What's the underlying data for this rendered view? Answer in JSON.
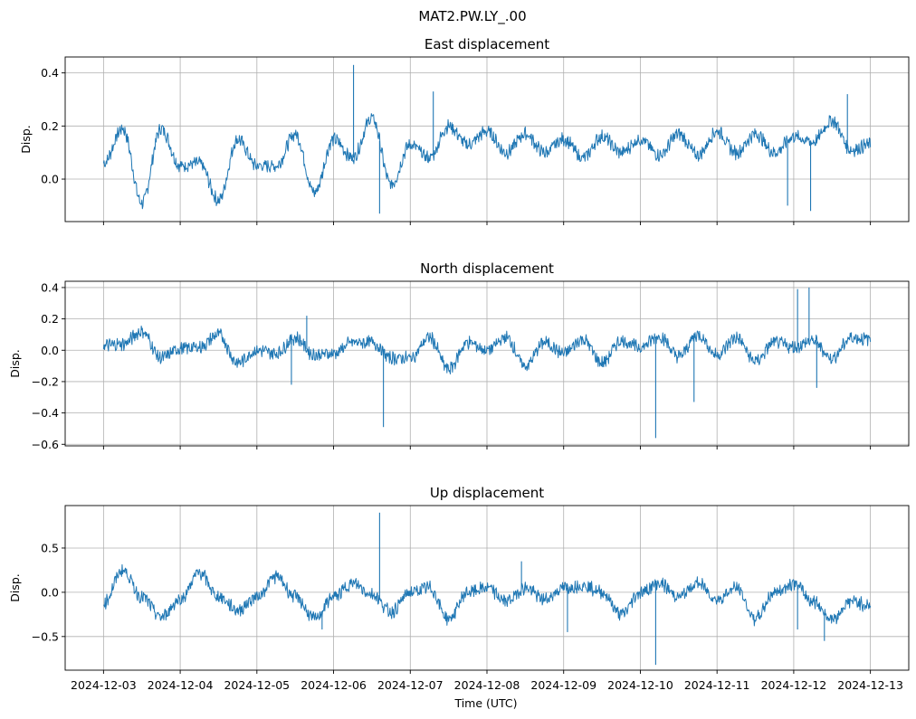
{
  "figure": {
    "suptitle": "MAT2.PW.LY_.00",
    "xlabel": "Time (UTC)"
  },
  "chart_data": [
    {
      "type": "line",
      "title": "East displacement",
      "ylabel": "Disp.",
      "xlim": [
        -0.5,
        10.5
      ],
      "ylim": [
        -0.16,
        0.46
      ],
      "yticks": [
        0.0,
        0.2,
        0.4
      ],
      "ytick_labels": [
        "0.0",
        "0.2",
        "0.4"
      ],
      "color": "#1f77b4",
      "x": [
        0,
        0.25,
        0.5,
        0.75,
        1.0,
        1.25,
        1.5,
        1.75,
        2.0,
        2.25,
        2.5,
        2.75,
        3.0,
        3.25,
        3.5,
        3.75,
        4.0,
        4.25,
        4.5,
        4.75,
        5.0,
        5.25,
        5.5,
        5.75,
        6.0,
        6.25,
        6.5,
        6.75,
        7.0,
        7.25,
        7.5,
        7.75,
        8.0,
        8.25,
        8.5,
        8.75,
        9.0,
        9.25,
        9.5,
        9.75,
        10.0
      ],
      "values": [
        0.06,
        0.19,
        -0.09,
        0.19,
        0.05,
        0.06,
        -0.08,
        0.15,
        0.05,
        0.05,
        0.17,
        -0.05,
        0.15,
        0.08,
        0.23,
        -0.02,
        0.13,
        0.08,
        0.2,
        0.13,
        0.18,
        0.1,
        0.17,
        0.1,
        0.15,
        0.08,
        0.16,
        0.1,
        0.15,
        0.09,
        0.17,
        0.09,
        0.18,
        0.1,
        0.17,
        0.1,
        0.16,
        0.14,
        0.22,
        0.11,
        0.13
      ],
      "spikes": [
        {
          "x": 3.26,
          "y": 0.43
        },
        {
          "x": 3.6,
          "y": -0.13
        },
        {
          "x": 4.3,
          "y": 0.33
        },
        {
          "x": 8.92,
          "y": -0.1
        },
        {
          "x": 9.22,
          "y": -0.12
        },
        {
          "x": 9.7,
          "y": 0.32
        }
      ]
    },
    {
      "type": "line",
      "title": "North displacement",
      "ylabel": "Disp.",
      "xlim": [
        -0.5,
        10.5
      ],
      "ylim": [
        -0.61,
        0.44
      ],
      "yticks": [
        -0.6,
        -0.4,
        -0.2,
        0.0,
        0.2,
        0.4
      ],
      "ytick_labels": [
        "−0.6",
        "−0.4",
        "−0.2",
        "0.0",
        "0.2",
        "0.4"
      ],
      "color": "#1f77b4",
      "x": [
        0,
        0.25,
        0.5,
        0.75,
        1.0,
        1.25,
        1.5,
        1.75,
        2.0,
        2.25,
        2.5,
        2.75,
        3.0,
        3.25,
        3.5,
        3.75,
        4.0,
        4.25,
        4.5,
        4.75,
        5.0,
        5.25,
        5.5,
        5.75,
        6.0,
        6.25,
        6.5,
        6.75,
        7.0,
        7.25,
        7.5,
        7.75,
        8.0,
        8.25,
        8.5,
        8.75,
        9.0,
        9.25,
        9.5,
        9.75,
        10.0
      ],
      "values": [
        0.03,
        0.04,
        0.12,
        -0.05,
        0.01,
        0.02,
        0.1,
        -0.08,
        0.0,
        -0.02,
        0.08,
        -0.03,
        -0.02,
        0.05,
        0.05,
        -0.05,
        -0.05,
        0.08,
        -0.12,
        0.05,
        0.0,
        0.08,
        -0.1,
        0.05,
        -0.02,
        0.07,
        -0.08,
        0.06,
        0.02,
        0.09,
        -0.04,
        0.1,
        -0.03,
        0.08,
        -0.07,
        0.05,
        0.02,
        0.06,
        -0.05,
        0.08,
        0.07
      ],
      "spikes": [
        {
          "x": 2.45,
          "y": -0.22
        },
        {
          "x": 2.65,
          "y": 0.22
        },
        {
          "x": 3.65,
          "y": -0.49
        },
        {
          "x": 7.2,
          "y": -0.56
        },
        {
          "x": 7.7,
          "y": -0.33
        },
        {
          "x": 9.05,
          "y": 0.39
        },
        {
          "x": 9.2,
          "y": 0.4
        },
        {
          "x": 9.3,
          "y": -0.24
        }
      ]
    },
    {
      "type": "line",
      "title": "Up displacement",
      "ylabel": "Disp.",
      "xlim": [
        -0.5,
        10.5
      ],
      "ylim": [
        -0.88,
        0.98
      ],
      "yticks": [
        -0.5,
        0.0,
        0.5
      ],
      "ytick_labels": [
        "−0.5",
        "0.0",
        "0.5"
      ],
      "color": "#1f77b4",
      "x": [
        0,
        0.25,
        0.5,
        0.75,
        1.0,
        1.25,
        1.5,
        1.75,
        2.0,
        2.25,
        2.5,
        2.75,
        3.0,
        3.25,
        3.5,
        3.75,
        4.0,
        4.25,
        4.5,
        4.75,
        5.0,
        5.25,
        5.5,
        5.75,
        6.0,
        6.25,
        6.5,
        6.75,
        7.0,
        7.25,
        7.5,
        7.75,
        8.0,
        8.25,
        8.5,
        8.75,
        9.0,
        9.25,
        9.5,
        9.75,
        10.0
      ],
      "values": [
        -0.12,
        0.25,
        -0.05,
        -0.28,
        -0.08,
        0.22,
        -0.05,
        -0.2,
        -0.05,
        0.18,
        -0.05,
        -0.3,
        -0.05,
        0.1,
        -0.02,
        -0.22,
        0.0,
        0.05,
        -0.3,
        0.0,
        0.05,
        -0.1,
        0.05,
        -0.08,
        0.05,
        0.08,
        0.0,
        -0.25,
        0.0,
        0.1,
        -0.05,
        0.1,
        -0.08,
        0.05,
        -0.3,
        0.0,
        0.1,
        -0.1,
        -0.3,
        -0.1,
        -0.15
      ],
      "spikes": [
        {
          "x": 2.85,
          "y": -0.42
        },
        {
          "x": 3.6,
          "y": 0.9
        },
        {
          "x": 5.45,
          "y": 0.35
        },
        {
          "x": 6.05,
          "y": -0.45
        },
        {
          "x": 7.2,
          "y": -0.82
        },
        {
          "x": 9.05,
          "y": -0.42
        },
        {
          "x": 9.4,
          "y": -0.55
        }
      ]
    }
  ],
  "x_axis": {
    "tick_positions": [
      0,
      1,
      2,
      3,
      4,
      5,
      6,
      7,
      8,
      9,
      10
    ],
    "tick_labels": [
      "2024-12-03",
      "2024-12-04",
      "2024-12-05",
      "2024-12-06",
      "2024-12-07",
      "2024-12-08",
      "2024-12-09",
      "2024-12-10",
      "2024-12-11",
      "2024-12-12",
      "2024-12-13"
    ]
  }
}
